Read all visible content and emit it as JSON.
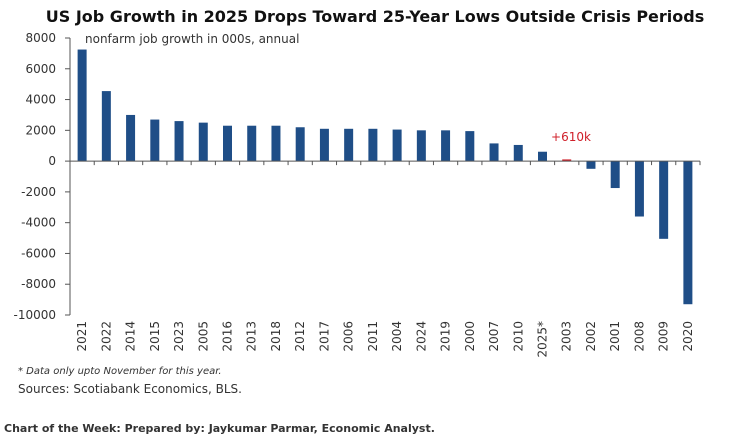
{
  "chart_data": {
    "type": "bar",
    "title": "US Job Growth in 2025 Drops Toward 25-Year Lows Outside Crisis Periods",
    "subtitle": "nonfarm job growth in 000s, annual",
    "annotation": "+610k",
    "footnote": "* Data only upto November for this year.",
    "source": "Sources: Scotiabank Economics, BLS.",
    "credit": "Chart of the Week: Prepared by: Jaykumar Parmar, Economic Analyst.",
    "categories": [
      "2021",
      "2022",
      "2014",
      "2015",
      "2023",
      "2005",
      "2016",
      "2013",
      "2018",
      "2012",
      "2017",
      "2006",
      "2011",
      "2004",
      "2024",
      "2019",
      "2000",
      "2007",
      "2010",
      "2025*",
      "2003",
      "2002",
      "2001",
      "2008",
      "2009",
      "2020"
    ],
    "values": [
      7250,
      4550,
      3000,
      2700,
      2600,
      2500,
      2300,
      2300,
      2300,
      2200,
      2100,
      2100,
      2100,
      2050,
      2000,
      2000,
      1950,
      1150,
      1050,
      610,
      110,
      -500,
      -1750,
      -3600,
      -5050,
      -9300
    ],
    "colors": [
      "#1f4e87",
      "#1f4e87",
      "#1f4e87",
      "#1f4e87",
      "#1f4e87",
      "#1f4e87",
      "#1f4e87",
      "#1f4e87",
      "#1f4e87",
      "#1f4e87",
      "#1f4e87",
      "#1f4e87",
      "#1f4e87",
      "#1f4e87",
      "#1f4e87",
      "#1f4e87",
      "#1f4e87",
      "#1f4e87",
      "#1f4e87",
      "#1f4e87",
      "#d0202a",
      "#1f4e87",
      "#1f4e87",
      "#1f4e87",
      "#1f4e87",
      "#1f4e87"
    ],
    "ylim": [
      -10000,
      8000
    ],
    "yticks": [
      -10000,
      -8000,
      -6000,
      -4000,
      -2000,
      0,
      2000,
      4000,
      6000,
      8000
    ],
    "grid": false
  }
}
